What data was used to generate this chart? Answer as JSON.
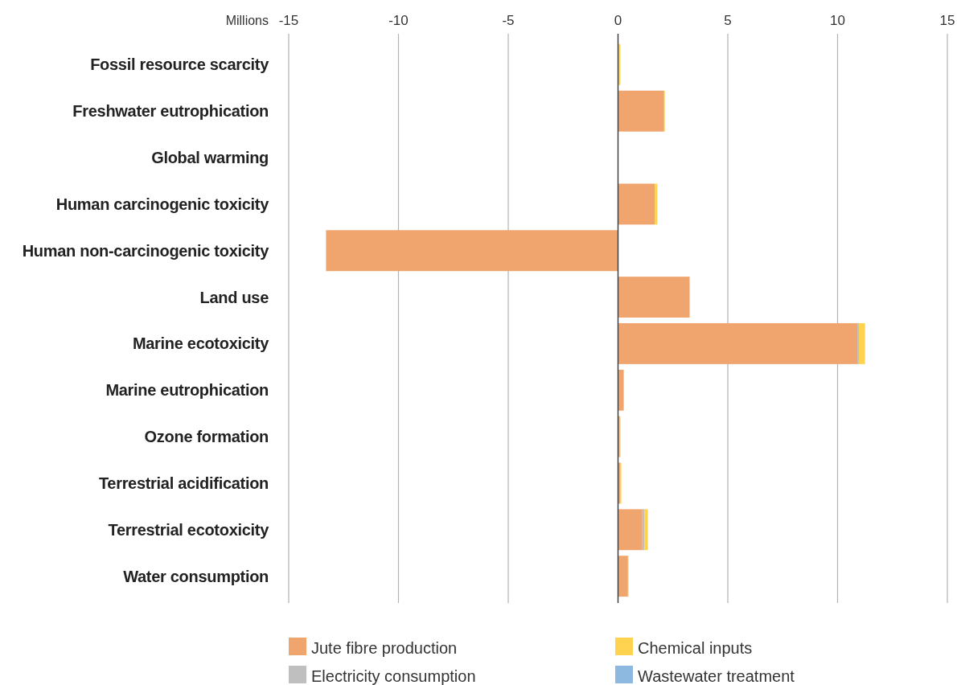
{
  "chart_data": {
    "type": "bar",
    "orientation": "horizontal",
    "stacked": true,
    "xlabel": "Millions",
    "categories": [
      "Fossil resource scarcity",
      "Freshwater eutrophication",
      "Global warming",
      "Human carcinogenic toxicity",
      "Human non-carcinogenic toxicity",
      "Land use",
      "Marine ecotoxicity",
      "Marine eutrophication",
      "Ozone formation",
      "Terrestrial acidification",
      "Terrestrial ecotoxicity",
      "Water consumption"
    ],
    "series": [
      {
        "name": "Jute fibre production",
        "color": "#f0a46e",
        "values": [
          null,
          2.1,
          null,
          1.67,
          -13.3,
          3.26,
          10.9,
          0.26,
          0.08,
          0.1,
          1.11,
          0.45
        ]
      },
      {
        "name": "Electricity consumption",
        "color": "#bfbfbf",
        "values": [
          0,
          0,
          0,
          null,
          0,
          0,
          0.07,
          0,
          0,
          0,
          0.1,
          0
        ]
      },
      {
        "name": "Chemical inputs",
        "color": "#ffd34f",
        "values": [
          0.1,
          0.03,
          0,
          0.12,
          0,
          0.02,
          0.28,
          null,
          0.03,
          0.05,
          0.15,
          0.03
        ]
      },
      {
        "name": "Wastewater treatment",
        "color": "#8db8e0",
        "values": [
          0,
          0,
          0,
          0,
          0,
          0,
          null,
          0,
          0,
          0,
          0,
          0
        ]
      }
    ],
    "xlim": [
      -15,
      15
    ],
    "xticks": [
      -15,
      -10,
      -5,
      0,
      5,
      10,
      15
    ],
    "grid": "x",
    "legend": "bottom"
  }
}
